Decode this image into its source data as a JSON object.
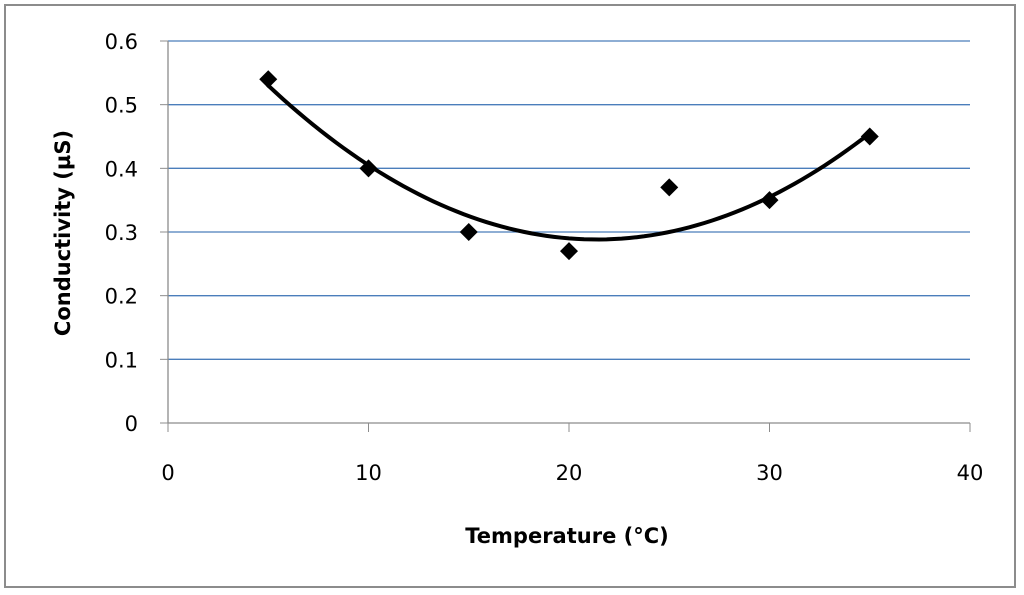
{
  "chart_data": {
    "type": "scatter",
    "title": "",
    "xlabel": "Temperature (°C)",
    "ylabel": "Conductivity  (µS)",
    "xlim": [
      0,
      40
    ],
    "ylim": [
      0,
      0.6
    ],
    "x_ticks": [
      "0",
      "10",
      "20",
      "30",
      "40"
    ],
    "y_ticks": [
      "0",
      "0.1",
      "0.2",
      "0.3",
      "0.4",
      "0.5",
      "0.6"
    ],
    "grid": "horizontal",
    "legend": "none",
    "series": [
      {
        "x": [
          5,
          10,
          15,
          20,
          25,
          30,
          35
        ],
        "y": [
          0.54,
          0.4,
          0.3,
          0.27,
          0.37,
          0.35,
          0.45
        ],
        "marker": "diamond"
      }
    ],
    "trendline": {
      "type": "polynomial",
      "order": 2,
      "coefficients": [
        0.7,
        -0.0385,
        0.0009
      ]
    },
    "colors": {
      "gridline": "#4a7ebb",
      "marker": "#000000",
      "trendline": "#000000",
      "axis": "#8c8c8c",
      "frame": "#8c8c8c"
    }
  }
}
